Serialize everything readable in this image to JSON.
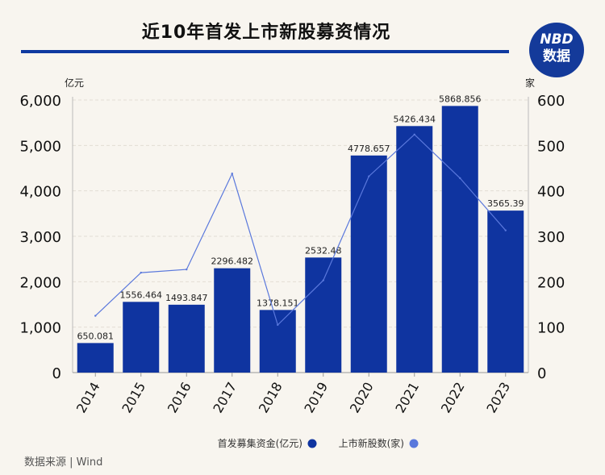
{
  "header": {
    "title": "近10年首发上市新股募资情况",
    "logo_top": "NBD",
    "logo_bottom": "数据"
  },
  "source": "数据来源 | Wind",
  "colors": {
    "bar": "#0f34a0",
    "line": "#5a78dc",
    "title_rule": "#0f3aa0",
    "background": "#f8f5ef"
  },
  "chart_data": {
    "type": "bar",
    "title": "近10年首发上市新股募资情况",
    "categories": [
      "2014",
      "2015",
      "2016",
      "2017",
      "2018",
      "2019",
      "2020",
      "2021",
      "2022",
      "2023"
    ],
    "series": [
      {
        "name": "首发募集资金(亿元)",
        "type": "bar",
        "axis": "left",
        "values": [
          650.081,
          1556.464,
          1493.847,
          2296.482,
          1378.151,
          2532.48,
          4778.657,
          5426.434,
          5868.856,
          3565.39
        ],
        "labels": [
          "650.081",
          "1556.464",
          "1493.847",
          "2296.482",
          "1378.151",
          "2532.48",
          "4778.657",
          "5426.434",
          "5868.856",
          "3565.39"
        ]
      },
      {
        "name": "上市新股数(家)",
        "type": "line",
        "axis": "right",
        "values": [
          125,
          220,
          227,
          438,
          105,
          203,
          432,
          524,
          428,
          313
        ]
      }
    ],
    "ylabel_left": "亿元",
    "ylabel_right": "家",
    "ylim_left": [
      0,
      6000
    ],
    "ylim_right": [
      0,
      600
    ],
    "yticks_left": [
      "0",
      "1,000",
      "2,000",
      "3,000",
      "4,000",
      "5,000",
      "6,000"
    ],
    "yticks_right": [
      "0",
      "100",
      "200",
      "300",
      "400",
      "500",
      "600"
    ],
    "grid": true,
    "legend": "bottom"
  }
}
